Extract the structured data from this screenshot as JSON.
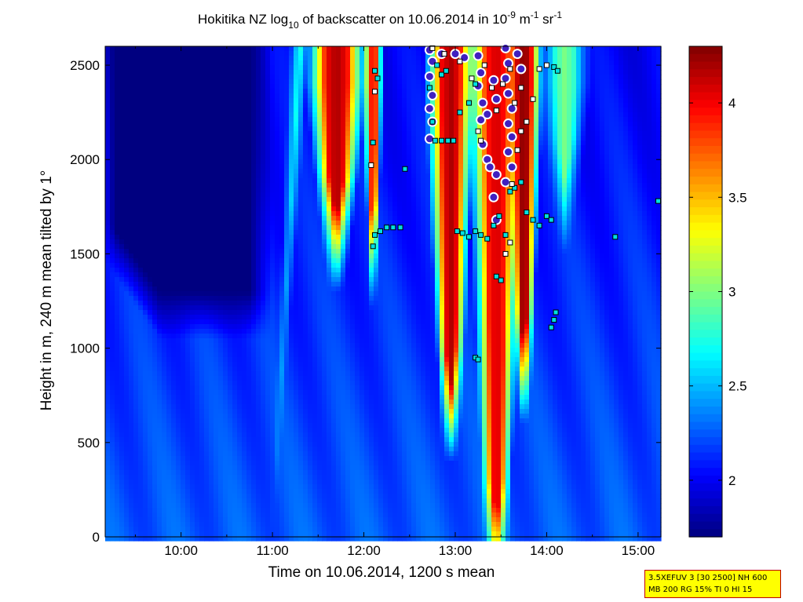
{
  "chart_data": {
    "type": "heatmap",
    "title": {
      "prefix": "Hokitika NZ log",
      "prefix_sub": "10",
      "middle": " of backscatter on 10.06.2014 in 10",
      "exp1": "-9",
      "unit1": " m",
      "exp2": "-1",
      "unit2": " sr",
      "exp3": "-1"
    },
    "xlabel": "Time on 10.06.2014, 1200 s mean",
    "ylabel": "Height in m, 240 m mean tilted by 1°",
    "xlim_hours": [
      9.17,
      15.25
    ],
    "ylim": [
      0,
      2600
    ],
    "x_ticks": [
      {
        "label": "10:00",
        "hour": 10.0
      },
      {
        "label": "11:00",
        "hour": 11.0
      },
      {
        "label": "12:00",
        "hour": 12.0
      },
      {
        "label": "13:00",
        "hour": 13.0
      },
      {
        "label": "14:00",
        "hour": 14.0
      },
      {
        "label": "15:00",
        "hour": 15.0
      }
    ],
    "y_ticks": [
      0,
      500,
      1000,
      1500,
      2000,
      2500
    ],
    "colorbar": {
      "range": [
        1.7,
        4.3
      ],
      "ticks": [
        2,
        2.5,
        3,
        3.5,
        4
      ],
      "tick_labels": [
        "2",
        "2.5",
        "3",
        "3.5",
        "4"
      ],
      "colormap": "jet"
    },
    "background_level": 2.25,
    "features": [
      {
        "kind": "clear_air",
        "x": [
          9.17,
          11.0
        ],
        "y_base": 1050,
        "value": 1.7
      },
      {
        "kind": "column",
        "center": 11.0,
        "half_width": 0.07,
        "top_at_ground": 2600,
        "value": 2.8
      },
      {
        "kind": "plume",
        "center": 11.7,
        "half_width": 0.35,
        "y_from": 1600,
        "y_to": 2600,
        "value": 4.2
      },
      {
        "kind": "plume",
        "center": 12.1,
        "half_width": 0.12,
        "y_from": 1500,
        "y_to": 2600,
        "value": 4.0
      },
      {
        "kind": "plume",
        "center": 12.95,
        "half_width": 0.3,
        "y_from": 700,
        "y_to": 2600,
        "value": 4.2
      },
      {
        "kind": "plume",
        "center": 13.45,
        "half_width": 0.35,
        "y_from": 0,
        "y_to": 2600,
        "value": 4.1
      },
      {
        "kind": "plume",
        "center": 13.75,
        "half_width": 0.22,
        "y_from": 900,
        "y_to": 2600,
        "value": 4.3
      },
      {
        "kind": "plume",
        "center": 14.2,
        "half_width": 0.3,
        "y_from": 1800,
        "y_to": 2600,
        "value": 3.0
      }
    ],
    "cloud_base_markers": [
      {
        "x": 12.12,
        "y": 1600
      },
      {
        "x": 12.18,
        "y": 1620
      },
      {
        "x": 12.25,
        "y": 1640
      },
      {
        "x": 12.32,
        "y": 1640
      },
      {
        "x": 12.4,
        "y": 1640
      },
      {
        "x": 12.1,
        "y": 2090
      },
      {
        "x": 12.1,
        "y": 1540
      },
      {
        "x": 12.45,
        "y": 1950
      },
      {
        "x": 12.12,
        "y": 2470
      },
      {
        "x": 12.15,
        "y": 2430
      },
      {
        "x": 12.72,
        "y": 2380
      },
      {
        "x": 12.8,
        "y": 2500
      },
      {
        "x": 12.85,
        "y": 2450
      },
      {
        "x": 12.9,
        "y": 2470
      },
      {
        "x": 12.75,
        "y": 2200
      },
      {
        "x": 12.78,
        "y": 2100
      },
      {
        "x": 12.85,
        "y": 2100
      },
      {
        "x": 12.92,
        "y": 2100
      },
      {
        "x": 12.98,
        "y": 2100
      },
      {
        "x": 13.05,
        "y": 2250
      },
      {
        "x": 13.15,
        "y": 2300
      },
      {
        "x": 13.22,
        "y": 2400
      },
      {
        "x": 13.02,
        "y": 1620
      },
      {
        "x": 13.08,
        "y": 1610
      },
      {
        "x": 13.15,
        "y": 1590
      },
      {
        "x": 13.22,
        "y": 1620
      },
      {
        "x": 13.28,
        "y": 1600
      },
      {
        "x": 13.35,
        "y": 1580
      },
      {
        "x": 13.42,
        "y": 1650
      },
      {
        "x": 13.48,
        "y": 1700
      },
      {
        "x": 13.55,
        "y": 1600
      },
      {
        "x": 13.45,
        "y": 1380
      },
      {
        "x": 13.5,
        "y": 1360
      },
      {
        "x": 13.78,
        "y": 1720
      },
      {
        "x": 13.85,
        "y": 1680
      },
      {
        "x": 13.92,
        "y": 1650
      },
      {
        "x": 14.0,
        "y": 1700
      },
      {
        "x": 14.05,
        "y": 1680
      },
      {
        "x": 14.05,
        "y": 1110
      },
      {
        "x": 14.08,
        "y": 1150
      },
      {
        "x": 14.1,
        "y": 1190
      },
      {
        "x": 13.22,
        "y": 950
      },
      {
        "x": 13.25,
        "y": 940
      },
      {
        "x": 14.08,
        "y": 2490
      },
      {
        "x": 14.12,
        "y": 2470
      },
      {
        "x": 14.75,
        "y": 1590
      },
      {
        "x": 15.22,
        "y": 1780
      },
      {
        "x": 13.6,
        "y": 1830
      },
      {
        "x": 13.65,
        "y": 1850
      },
      {
        "x": 13.72,
        "y": 1880
      }
    ],
    "cloud_layer_markers": [
      {
        "x": 12.08,
        "y": 1970
      },
      {
        "x": 12.12,
        "y": 2360
      },
      {
        "x": 12.75,
        "y": 2590
      },
      {
        "x": 12.88,
        "y": 2560
      },
      {
        "x": 13.05,
        "y": 2520
      },
      {
        "x": 13.18,
        "y": 2430
      },
      {
        "x": 13.25,
        "y": 2150
      },
      {
        "x": 13.28,
        "y": 2100
      },
      {
        "x": 13.32,
        "y": 2500
      },
      {
        "x": 13.4,
        "y": 2380
      },
      {
        "x": 13.45,
        "y": 2260
      },
      {
        "x": 13.52,
        "y": 2400
      },
      {
        "x": 13.6,
        "y": 2480
      },
      {
        "x": 13.65,
        "y": 2300
      },
      {
        "x": 13.72,
        "y": 2380
      },
      {
        "x": 13.78,
        "y": 2200
      },
      {
        "x": 13.85,
        "y": 2320
      },
      {
        "x": 13.92,
        "y": 2480
      },
      {
        "x": 14.0,
        "y": 2500
      },
      {
        "x": 13.62,
        "y": 1870
      },
      {
        "x": 13.55,
        "y": 1500
      },
      {
        "x": 13.6,
        "y": 1560
      },
      {
        "x": 13.72,
        "y": 2150
      },
      {
        "x": 13.68,
        "y": 2050
      }
    ],
    "precipitation_markers": [
      {
        "x": 12.72,
        "y": 2580
      },
      {
        "x": 12.75,
        "y": 2520
      },
      {
        "x": 12.72,
        "y": 2440
      },
      {
        "x": 12.75,
        "y": 2340
      },
      {
        "x": 12.72,
        "y": 2270
      },
      {
        "x": 12.75,
        "y": 2200
      },
      {
        "x": 12.72,
        "y": 2110
      },
      {
        "x": 12.85,
        "y": 2560
      },
      {
        "x": 13.0,
        "y": 2560
      },
      {
        "x": 13.1,
        "y": 2540
      },
      {
        "x": 13.25,
        "y": 2550
      },
      {
        "x": 13.28,
        "y": 2460
      },
      {
        "x": 13.25,
        "y": 2390
      },
      {
        "x": 13.3,
        "y": 2300
      },
      {
        "x": 13.28,
        "y": 2210
      },
      {
        "x": 13.35,
        "y": 2240
      },
      {
        "x": 13.3,
        "y": 2080
      },
      {
        "x": 13.35,
        "y": 2000
      },
      {
        "x": 13.42,
        "y": 2420
      },
      {
        "x": 13.45,
        "y": 2320
      },
      {
        "x": 13.55,
        "y": 2590
      },
      {
        "x": 13.58,
        "y": 2510
      },
      {
        "x": 13.55,
        "y": 2430
      },
      {
        "x": 13.58,
        "y": 2350
      },
      {
        "x": 13.62,
        "y": 2270
      },
      {
        "x": 13.58,
        "y": 2190
      },
      {
        "x": 13.62,
        "y": 2120
      },
      {
        "x": 13.58,
        "y": 2040
      },
      {
        "x": 13.62,
        "y": 1960
      },
      {
        "x": 13.55,
        "y": 1880
      },
      {
        "x": 13.68,
        "y": 2560
      },
      {
        "x": 13.72,
        "y": 2480
      },
      {
        "x": 13.45,
        "y": 1680
      },
      {
        "x": 13.42,
        "y": 1800
      },
      {
        "x": 13.45,
        "y": 1920
      },
      {
        "x": 13.38,
        "y": 1960
      }
    ]
  },
  "info_box": {
    "line1": "3.5XEFUV 3 [30 2500] NH 600",
    "line2": "MB 200 RG 15% TI 0 HI 15"
  }
}
